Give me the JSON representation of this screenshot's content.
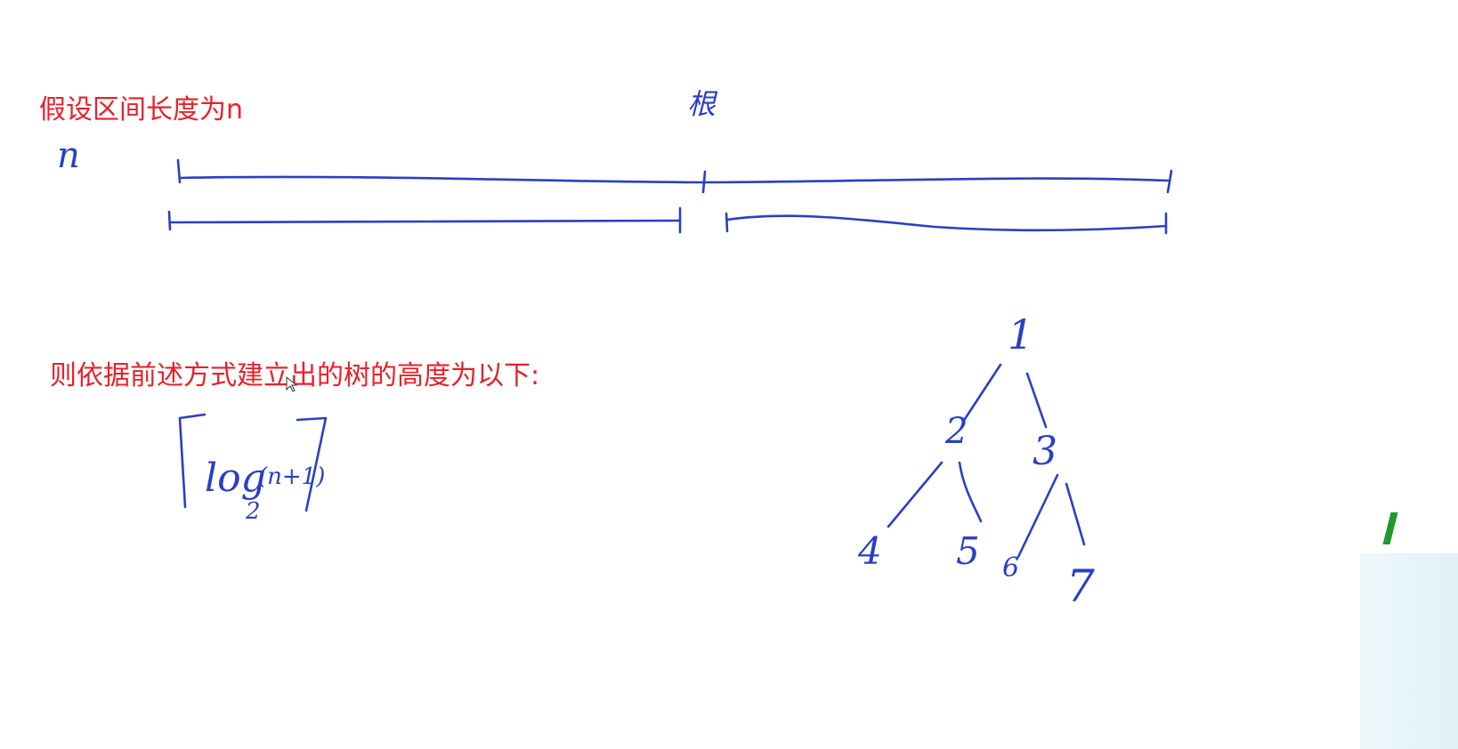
{
  "page": {
    "background": "#ffffff",
    "typed_text_color": "#e8202a",
    "ink_color": "#2a3fc4"
  },
  "typed": {
    "assumption": "假设区间长度为n",
    "conclusion": "则依据前述方式建立出的树的高度为以下:"
  },
  "handwriting": {
    "n_label": "n",
    "root_label": "根",
    "formula": {
      "log": "log",
      "base": "2",
      "argument": "(n+1)"
    },
    "tree_nodes": [
      "1",
      "2",
      "3",
      "4",
      "5",
      "6",
      "7"
    ]
  },
  "icons": {
    "cursor": "cursor-arrow-icon"
  }
}
